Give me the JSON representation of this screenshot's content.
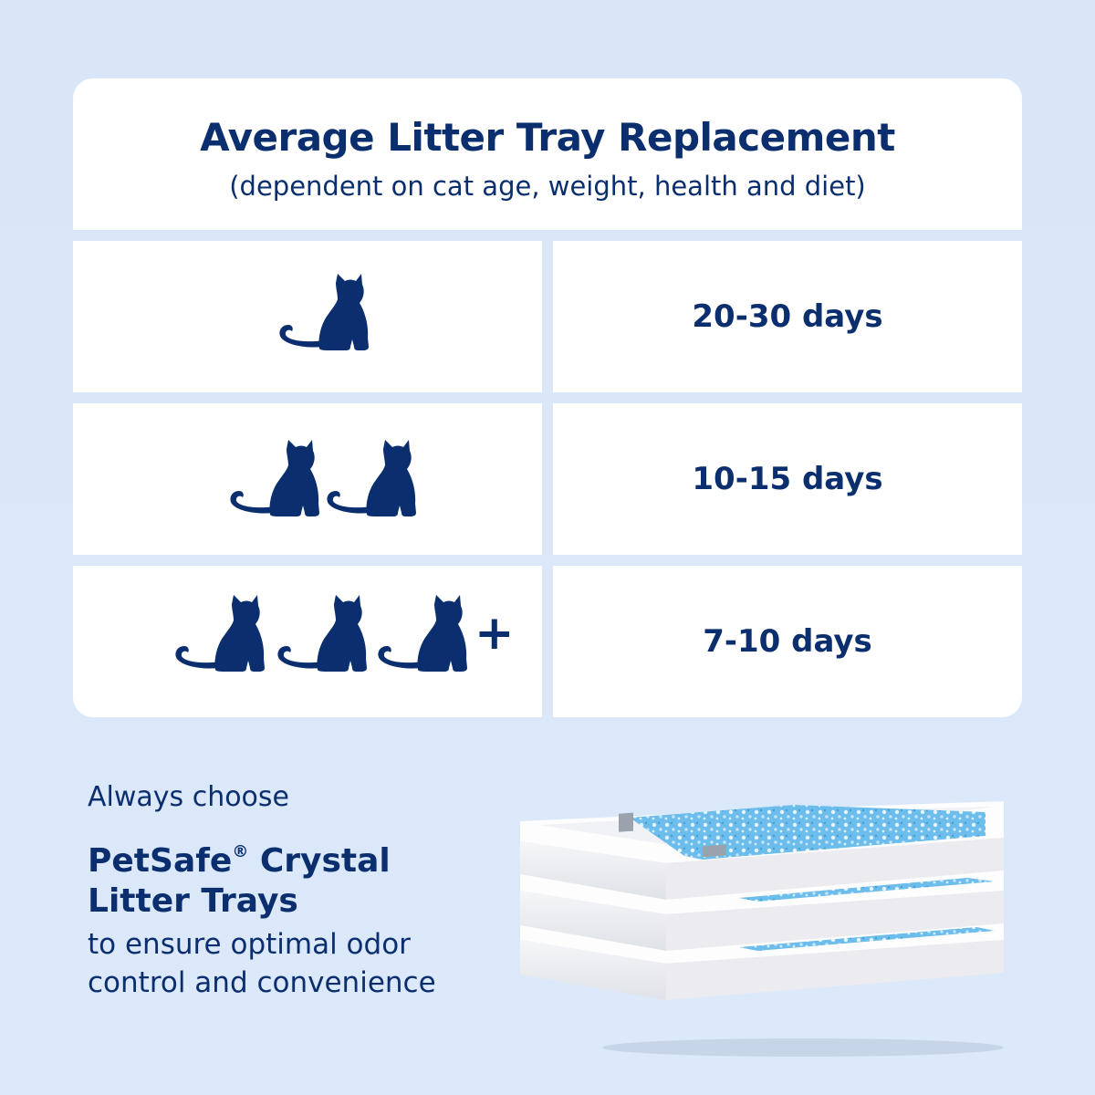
{
  "header": {
    "title": "Average Litter Tray Replacement",
    "subtitle": "(dependent on cat age, weight, health and diet)"
  },
  "table": {
    "rows": [
      {
        "cats": 1,
        "plus": false,
        "duration": "20-30 days"
      },
      {
        "cats": 2,
        "plus": false,
        "duration": "10-15 days"
      },
      {
        "cats": 3,
        "plus": true,
        "plus_label": "+",
        "duration": "7-10 days"
      }
    ]
  },
  "cta": {
    "intro": "Always choose",
    "brand_line1": "PetSafe",
    "brand_reg": "®",
    "brand_line1_rest": " Crystal",
    "brand_line2": "Litter Trays",
    "body_line1": "to ensure optimal odor",
    "body_line2": "control and convenience"
  },
  "icons": {
    "cat": "cat-silhouette-icon",
    "trays": "stacked-litter-trays-image"
  },
  "colors": {
    "primary_text": "#0b2f6e",
    "background": "#dce9fa",
    "card": "#ffffff",
    "crystal": "#5fb3e6"
  }
}
